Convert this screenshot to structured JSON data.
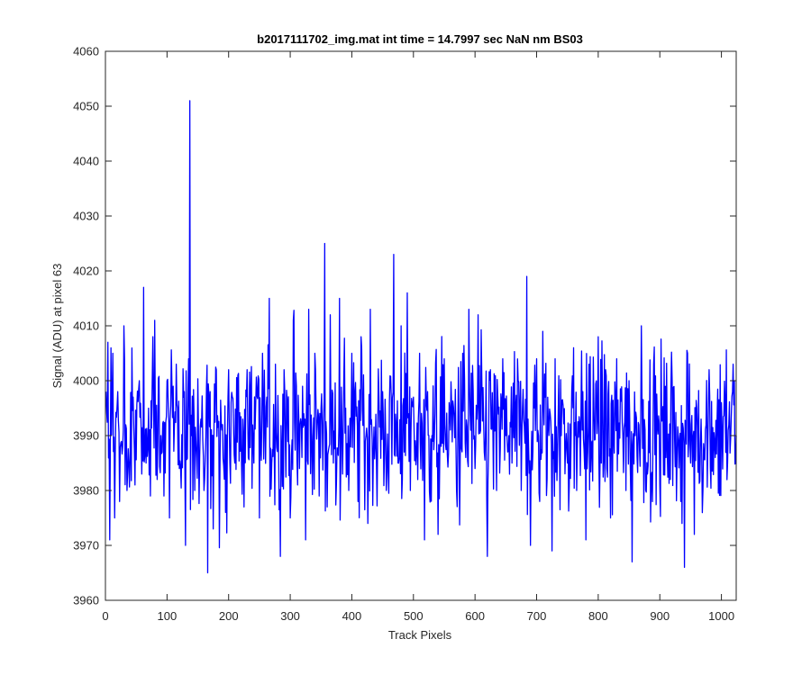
{
  "chart_data": {
    "type": "line",
    "title": "b2017111702_img.mat int time = 14.7997 sec  NaN nm BS03",
    "xlabel": "Track Pixels",
    "ylabel": "Signal (ADU) at pixel 63",
    "xlim": [
      0,
      1024
    ],
    "ylim": [
      3960,
      4060
    ],
    "xticks": [
      0,
      100,
      200,
      300,
      400,
      500,
      600,
      700,
      800,
      900,
      1000
    ],
    "yticks": [
      3960,
      3970,
      3980,
      3990,
      4000,
      4010,
      4020,
      4030,
      4040,
      4050,
      4060
    ],
    "grid": false,
    "line_color": "#0000ff",
    "background": "#ffffff",
    "series": [
      {
        "x_start": 1,
        "x_step": 1,
        "noise": {
          "mean": 3991,
          "sd": 7,
          "min": 3963,
          "max": 4026
        },
        "values": [
          [
            1,
            3998
          ],
          [
            4,
            4007
          ],
          [
            7,
            3971
          ],
          [
            12,
            4005
          ],
          [
            15,
            3975
          ],
          [
            20,
            3998
          ],
          [
            23,
            3978
          ],
          [
            30,
            4010
          ],
          [
            35,
            3980
          ],
          [
            45,
            3997
          ],
          [
            48,
            3981
          ],
          [
            55,
            4000
          ],
          [
            59,
            3983
          ],
          [
            62,
            4017
          ],
          [
            66,
            3985
          ],
          [
            70,
            3995
          ],
          [
            73,
            3979
          ],
          [
            77,
            4008
          ],
          [
            80,
            4011
          ],
          [
            84,
            3982
          ],
          [
            90,
            3990
          ],
          [
            95,
            3979
          ],
          [
            100,
            4000
          ],
          [
            104,
            3975
          ],
          [
            110,
            3999
          ],
          [
            115,
            4003
          ],
          [
            120,
            3984
          ],
          [
            127,
            3997
          ],
          [
            130,
            3970
          ],
          [
            135,
            4004
          ],
          [
            137,
            4051
          ],
          [
            140,
            3990
          ],
          [
            145,
            3980
          ],
          [
            155,
            3993
          ],
          [
            160,
            3980
          ],
          [
            166,
            3965
          ],
          [
            170,
            3998
          ],
          [
            175,
            3973
          ],
          [
            180,
            4002
          ],
          [
            190,
            3992
          ],
          [
            195,
            3976
          ],
          [
            200,
            4002
          ],
          [
            210,
            3985
          ],
          [
            215,
            4001
          ],
          [
            225,
            3977
          ],
          [
            230,
            4002
          ],
          [
            240,
            3989
          ],
          [
            250,
            3975
          ],
          [
            255,
            4005
          ],
          [
            262,
            3997
          ],
          [
            266,
            4015
          ],
          [
            270,
            3985
          ],
          [
            276,
            4003
          ],
          [
            284,
            3968
          ],
          [
            290,
            4002
          ],
          [
            300,
            3975
          ],
          [
            305,
            4011
          ],
          [
            312,
            3981
          ],
          [
            320,
            3999
          ],
          [
            325,
            3971
          ],
          [
            330,
            4013
          ],
          [
            335,
            3990
          ],
          [
            340,
            4005
          ],
          [
            347,
            3979
          ],
          [
            350,
            3995
          ],
          [
            356,
            4025
          ],
          [
            360,
            3977
          ],
          [
            365,
            4012
          ],
          [
            370,
            3985
          ],
          [
            380,
            4015
          ],
          [
            385,
            3983
          ],
          [
            390,
            3995
          ],
          [
            395,
            3980
          ],
          [
            400,
            4005
          ],
          [
            410,
            3978
          ],
          [
            415,
            4008
          ],
          [
            420,
            3990
          ],
          [
            426,
            3974
          ],
          [
            430,
            4013
          ],
          [
            440,
            3985
          ],
          [
            450,
            3998
          ],
          [
            456,
            3980
          ],
          [
            461,
            3996
          ],
          [
            468,
            4023
          ],
          [
            475,
            3985
          ],
          [
            480,
            4010
          ],
          [
            485,
            3987
          ],
          [
            490,
            4016
          ],
          [
            495,
            3980
          ],
          [
            500,
            3997
          ],
          [
            505,
            3987
          ],
          [
            510,
            4005
          ],
          [
            518,
            3971
          ],
          [
            523,
            3998
          ],
          [
            530,
            3990
          ],
          [
            540,
            3972
          ],
          [
            550,
            4004
          ],
          [
            560,
            3991
          ],
          [
            570,
            3980
          ],
          [
            580,
            4005
          ],
          [
            585,
            3986
          ],
          [
            590,
            4013
          ],
          [
            600,
            3984
          ],
          [
            605,
            4012
          ],
          [
            615,
            3987
          ],
          [
            620,
            3968
          ],
          [
            625,
            4002
          ],
          [
            635,
            3980
          ],
          [
            645,
            4004
          ],
          [
            650,
            3990
          ],
          [
            660,
            3985
          ],
          [
            670,
            4000
          ],
          [
            675,
            3980
          ],
          [
            684,
            4019
          ],
          [
            690,
            3970
          ],
          [
            700,
            4004
          ],
          [
            705,
            3978
          ],
          [
            710,
            4009
          ],
          [
            720,
            3990
          ],
          [
            725,
            3969
          ],
          [
            730,
            4004
          ],
          [
            740,
            3990
          ],
          [
            750,
            3985
          ],
          [
            760,
            4006
          ],
          [
            765,
            3980
          ],
          [
            775,
            3998
          ],
          [
            780,
            3971
          ],
          [
            785,
            4003
          ],
          [
            790,
            3989
          ],
          [
            800,
            4008
          ],
          [
            805,
            3985
          ],
          [
            812,
            4002
          ],
          [
            820,
            3975
          ],
          [
            825,
            3990
          ],
          [
            830,
            4004
          ],
          [
            840,
            3990
          ],
          [
            845,
            3980
          ],
          [
            850,
            4000
          ],
          [
            855,
            3967
          ],
          [
            860,
            3990
          ],
          [
            870,
            4010
          ],
          [
            880,
            3983
          ],
          [
            890,
            4003
          ],
          [
            900,
            3981
          ],
          [
            910,
            3986
          ],
          [
            920,
            4000
          ],
          [
            930,
            3990
          ],
          [
            936,
            3974
          ],
          [
            940,
            3966
          ],
          [
            945,
            4005
          ],
          [
            950,
            3985
          ],
          [
            956,
            3972
          ],
          [
            960,
            3995
          ],
          [
            970,
            3980
          ],
          [
            980,
            4002
          ],
          [
            990,
            3986
          ],
          [
            1000,
            3996
          ],
          [
            1010,
            3985
          ],
          [
            1018,
            3998
          ],
          [
            1021,
            4000
          ],
          [
            1024,
            3990
          ]
        ]
      }
    ]
  }
}
